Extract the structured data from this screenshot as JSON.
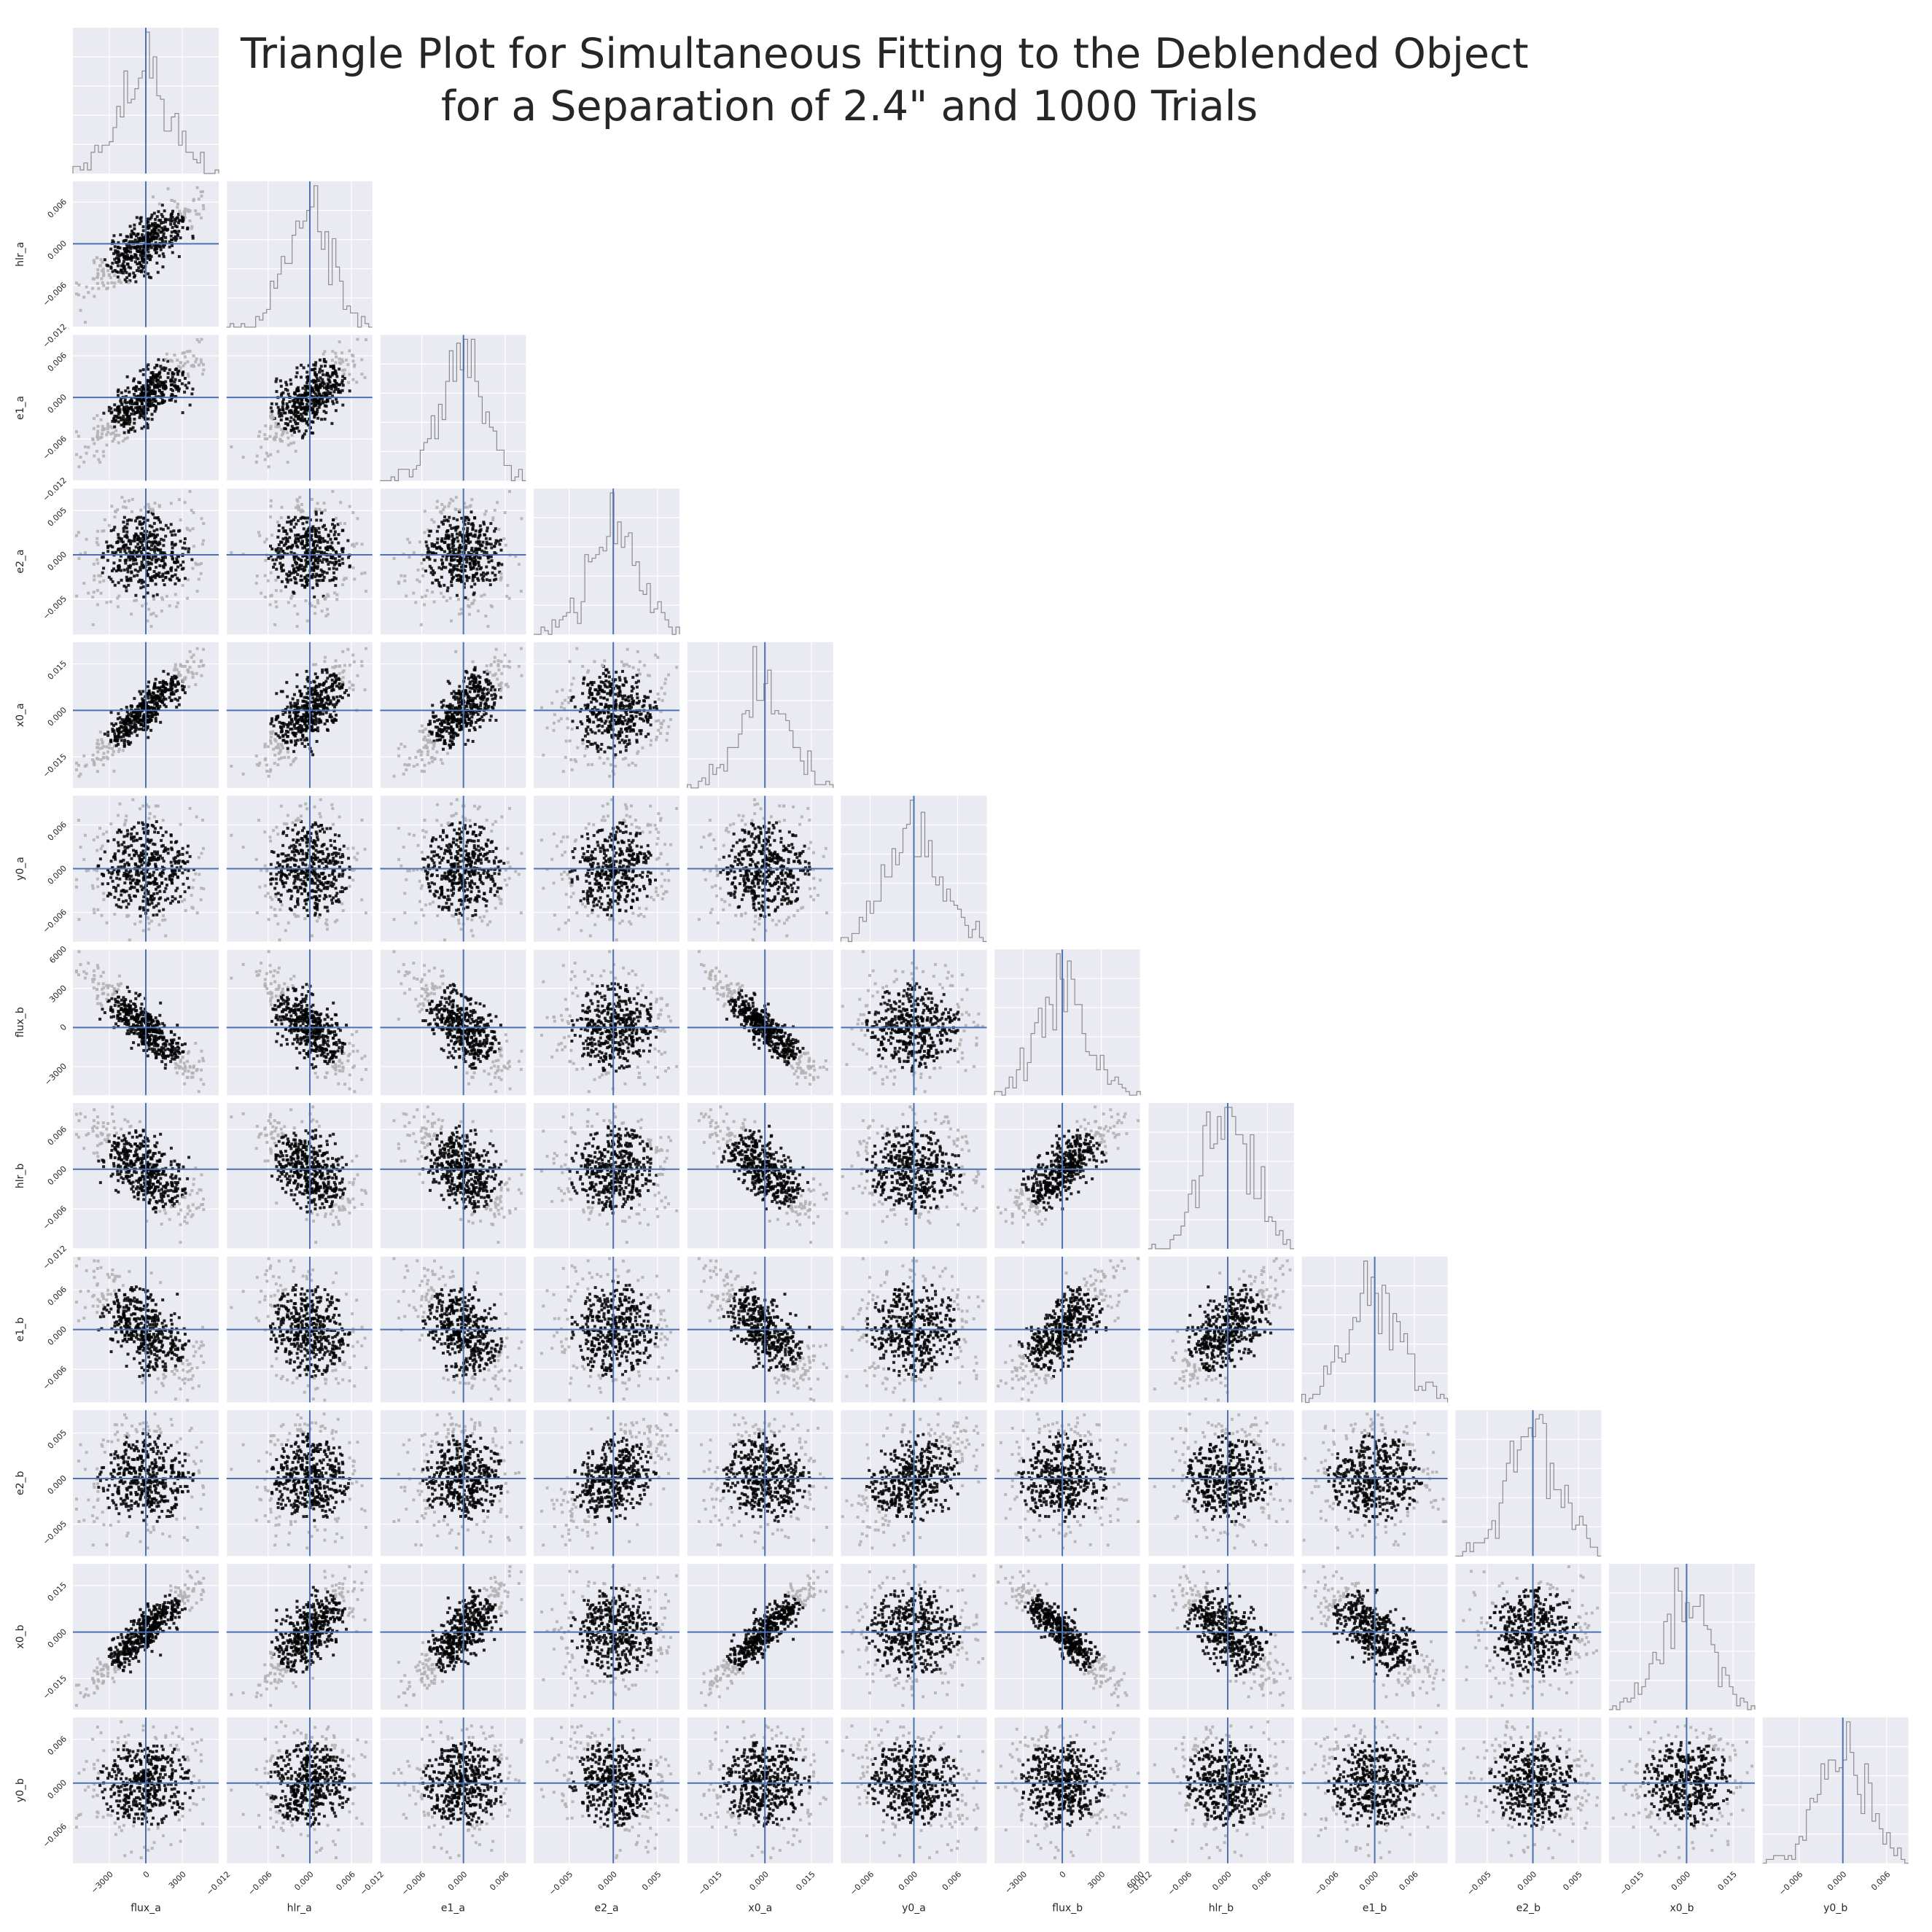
{
  "title": {
    "line1": "Triangle Plot for Simultaneous Fitting to the Deblended Object",
    "line2": "for a Separation of 2.4\" and 1000 Trials"
  },
  "colors": {
    "panel_background": "#eaeaf2",
    "grid": "#ffffff",
    "truth_line": "#4c72b0",
    "histogram": "#8c8c8c",
    "scatter_points": "#b3b3b3",
    "contours": "#000000"
  },
  "chart_data": {
    "type": "corner",
    "title": "Triangle Plot for Simultaneous Fitting to the Deblended Object for a Separation of 2.4\" and 1000 Trials",
    "n_trials": 1000,
    "truth_value": 0,
    "parameters": [
      {
        "name": "flux_a",
        "range": [
          -6000,
          6000
        ],
        "ticks": [
          -3000,
          0,
          3000
        ],
        "tick_labels": [
          "−3000",
          "0",
          "3000"
        ]
      },
      {
        "name": "hlr_a",
        "range": [
          -0.012,
          0.009
        ],
        "ticks": [
          -0.012,
          -0.006,
          0.0,
          0.006
        ],
        "tick_labels": [
          "−0.012",
          "−0.006",
          "0.000",
          "0.006"
        ]
      },
      {
        "name": "e1_a",
        "range": [
          -0.012,
          0.009
        ],
        "ticks": [
          -0.012,
          -0.006,
          0.0,
          0.006
        ],
        "tick_labels": [
          "−0.012",
          "−0.006",
          "0.000",
          "0.006"
        ]
      },
      {
        "name": "e2_a",
        "range": [
          -0.009,
          0.0075
        ],
        "ticks": [
          -0.005,
          0.0,
          0.005
        ],
        "tick_labels": [
          "−0.005",
          "0.000",
          "0.005"
        ]
      },
      {
        "name": "x0_a",
        "range": [
          -0.025,
          0.022
        ],
        "ticks": [
          -0.015,
          0.0,
          0.015
        ],
        "tick_labels": [
          "−0.015",
          "0.000",
          "0.015"
        ]
      },
      {
        "name": "y0_a",
        "range": [
          -0.01,
          0.01
        ],
        "ticks": [
          -0.006,
          0.0,
          0.006
        ],
        "tick_labels": [
          "−0.006",
          "0.000",
          "0.006"
        ]
      },
      {
        "name": "flux_b",
        "range": [
          -5200,
          6000
        ],
        "ticks": [
          -3000,
          0,
          3000,
          6000
        ],
        "tick_labels": [
          "−3000",
          "0",
          "3000",
          "6000"
        ]
      },
      {
        "name": "hlr_b",
        "range": [
          -0.012,
          0.01
        ],
        "ticks": [
          -0.012,
          -0.006,
          0.0,
          0.006
        ],
        "tick_labels": [
          "−0.012",
          "−0.006",
          "0.000",
          "0.006"
        ]
      },
      {
        "name": "e1_b",
        "range": [
          -0.011,
          0.011
        ],
        "ticks": [
          -0.006,
          0.0,
          0.006
        ],
        "tick_labels": [
          "−0.006",
          "0.000",
          "0.006"
        ]
      },
      {
        "name": "e2_b",
        "range": [
          -0.0085,
          0.0075
        ],
        "ticks": [
          -0.005,
          0.0,
          0.005
        ],
        "tick_labels": [
          "−0.005",
          "0.000",
          "0.005"
        ]
      },
      {
        "name": "x0_b",
        "range": [
          -0.025,
          0.022
        ],
        "ticks": [
          -0.015,
          0.0,
          0.015
        ],
        "tick_labels": [
          "−0.015",
          "0.000",
          "0.015"
        ]
      },
      {
        "name": "y0_b",
        "range": [
          -0.011,
          0.009
        ],
        "ticks": [
          -0.006,
          0.0,
          0.006
        ],
        "tick_labels": [
          "−0.006",
          "0.000",
          "0.006"
        ]
      }
    ],
    "correlations": [
      [
        1.0,
        0.8,
        0.8,
        0.0,
        0.92,
        0.0,
        -0.9,
        -0.7,
        -0.65,
        0.0,
        0.92,
        0.0
      ],
      [
        0.8,
        1.0,
        0.7,
        0.0,
        0.75,
        0.0,
        -0.75,
        -0.55,
        -0.3,
        0.0,
        0.75,
        0.0
      ],
      [
        0.8,
        0.7,
        1.0,
        0.0,
        0.78,
        0.0,
        -0.7,
        -0.55,
        -0.5,
        0.0,
        0.8,
        0.0
      ],
      [
        0.0,
        0.0,
        0.0,
        1.0,
        0.0,
        0.0,
        0.0,
        0.0,
        0.0,
        0.55,
        0.0,
        -0.2
      ],
      [
        0.92,
        0.75,
        0.78,
        0.0,
        1.0,
        0.0,
        -0.92,
        -0.75,
        -0.75,
        0.0,
        0.92,
        0.0
      ],
      [
        0.0,
        0.0,
        0.0,
        0.0,
        0.0,
        1.0,
        0.0,
        0.0,
        0.0,
        0.5,
        0.0,
        -0.15
      ],
      [
        -0.9,
        -0.75,
        -0.7,
        0.0,
        -0.92,
        0.0,
        1.0,
        0.8,
        0.75,
        0.0,
        -0.92,
        0.0
      ],
      [
        -0.7,
        -0.55,
        -0.55,
        0.0,
        -0.75,
        0.0,
        0.8,
        1.0,
        0.65,
        0.0,
        -0.7,
        0.0
      ],
      [
        -0.65,
        -0.3,
        -0.5,
        0.0,
        -0.75,
        0.0,
        0.75,
        0.65,
        1.0,
        0.0,
        -0.75,
        0.0
      ],
      [
        0.0,
        0.0,
        0.0,
        0.55,
        0.0,
        0.5,
        0.0,
        0.0,
        0.0,
        1.0,
        0.0,
        0.0
      ],
      [
        0.92,
        0.75,
        0.8,
        0.0,
        0.92,
        0.0,
        -0.92,
        -0.7,
        -0.75,
        0.0,
        1.0,
        0.0
      ],
      [
        0.0,
        0.0,
        0.0,
        -0.2,
        0.0,
        -0.15,
        0.0,
        0.0,
        0.0,
        0.0,
        0.0,
        1.0
      ]
    ],
    "grid": true
  }
}
